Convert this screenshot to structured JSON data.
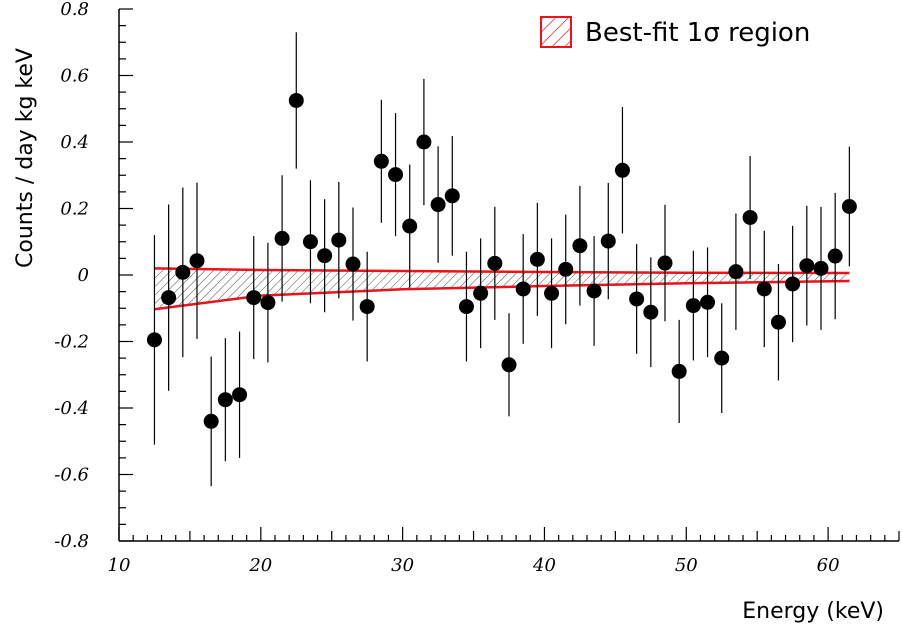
{
  "chart_data": {
    "type": "scatter",
    "xlabel": "Energy (keV)",
    "ylabel": "Counts / day kg keV",
    "xlim": [
      10,
      65
    ],
    "ylim": [
      -0.8,
      0.8
    ],
    "x_ticks": [
      "10",
      "20",
      "30",
      "40",
      "50",
      "60"
    ],
    "y_ticks": [
      "-0.8",
      "-0.6",
      "-0.4",
      "-0.2",
      "0",
      "0.2",
      "0.4",
      "0.6",
      "0.8"
    ],
    "legend": {
      "label": "Best-fit 1σ region",
      "position": "top-right"
    },
    "series": [
      {
        "points": [
          {
            "x": 12.5,
            "y": -0.195,
            "err": 0.315
          },
          {
            "x": 13.5,
            "y": -0.068,
            "err": 0.28
          },
          {
            "x": 14.5,
            "y": 0.008,
            "err": 0.255
          },
          {
            "x": 15.5,
            "y": 0.043,
            "err": 0.235
          },
          {
            "x": 16.5,
            "y": -0.44,
            "err": 0.195
          },
          {
            "x": 17.5,
            "y": -0.375,
            "err": 0.185
          },
          {
            "x": 18.5,
            "y": -0.36,
            "err": 0.19
          },
          {
            "x": 19.5,
            "y": -0.068,
            "err": 0.185
          },
          {
            "x": 20.5,
            "y": -0.083,
            "err": 0.18
          },
          {
            "x": 21.5,
            "y": 0.11,
            "err": 0.19
          },
          {
            "x": 22.5,
            "y": 0.525,
            "err": 0.205
          },
          {
            "x": 23.5,
            "y": 0.1,
            "err": 0.185
          },
          {
            "x": 24.5,
            "y": 0.058,
            "err": 0.17
          },
          {
            "x": 25.5,
            "y": 0.105,
            "err": 0.175
          },
          {
            "x": 26.5,
            "y": 0.033,
            "err": 0.17
          },
          {
            "x": 27.5,
            "y": -0.095,
            "err": 0.165
          },
          {
            "x": 28.5,
            "y": 0.342,
            "err": 0.185
          },
          {
            "x": 29.5,
            "y": 0.302,
            "err": 0.185
          },
          {
            "x": 30.5,
            "y": 0.147,
            "err": 0.185
          },
          {
            "x": 31.5,
            "y": 0.4,
            "err": 0.19
          },
          {
            "x": 32.5,
            "y": 0.212,
            "err": 0.175
          },
          {
            "x": 33.5,
            "y": 0.238,
            "err": 0.18
          },
          {
            "x": 34.5,
            "y": -0.095,
            "err": 0.165
          },
          {
            "x": 35.5,
            "y": -0.055,
            "err": 0.165
          },
          {
            "x": 36.5,
            "y": 0.035,
            "err": 0.17
          },
          {
            "x": 37.5,
            "y": -0.27,
            "err": 0.155
          },
          {
            "x": 38.5,
            "y": -0.042,
            "err": 0.165
          },
          {
            "x": 39.5,
            "y": 0.047,
            "err": 0.17
          },
          {
            "x": 40.5,
            "y": -0.055,
            "err": 0.165
          },
          {
            "x": 41.5,
            "y": 0.017,
            "err": 0.165
          },
          {
            "x": 42.5,
            "y": 0.088,
            "err": 0.18
          },
          {
            "x": 43.5,
            "y": -0.048,
            "err": 0.165
          },
          {
            "x": 44.5,
            "y": 0.102,
            "err": 0.175
          },
          {
            "x": 45.5,
            "y": 0.315,
            "err": 0.19
          },
          {
            "x": 46.5,
            "y": -0.072,
            "err": 0.165
          },
          {
            "x": 47.5,
            "y": -0.112,
            "err": 0.165
          },
          {
            "x": 48.5,
            "y": 0.036,
            "err": 0.175
          },
          {
            "x": 49.5,
            "y": -0.29,
            "err": 0.155
          },
          {
            "x": 50.5,
            "y": -0.092,
            "err": 0.165
          },
          {
            "x": 51.5,
            "y": -0.082,
            "err": 0.165
          },
          {
            "x": 52.5,
            "y": -0.25,
            "err": 0.165
          },
          {
            "x": 53.5,
            "y": 0.01,
            "err": 0.175
          },
          {
            "x": 54.5,
            "y": 0.173,
            "err": 0.185
          },
          {
            "x": 55.5,
            "y": -0.042,
            "err": 0.175
          },
          {
            "x": 56.5,
            "y": -0.142,
            "err": 0.175
          },
          {
            "x": 57.5,
            "y": -0.027,
            "err": 0.175
          },
          {
            "x": 58.5,
            "y": 0.028,
            "err": 0.18
          },
          {
            "x": 59.5,
            "y": 0.02,
            "err": 0.185
          },
          {
            "x": 60.5,
            "y": 0.057,
            "err": 0.19
          },
          {
            "x": 61.5,
            "y": 0.206,
            "err": 0.18
          }
        ]
      }
    ],
    "band": {
      "x": [
        12.5,
        20,
        30,
        40,
        50,
        61.5
      ],
      "upper": [
        0.02,
        0.015,
        0.012,
        0.009,
        0.007,
        0.006
      ],
      "lower": [
        -0.103,
        -0.062,
        -0.043,
        -0.033,
        -0.025,
        -0.018
      ]
    },
    "colors": {
      "band_edge": "#e8141a",
      "band_hatch": "#555555",
      "points": "#000000"
    }
  }
}
